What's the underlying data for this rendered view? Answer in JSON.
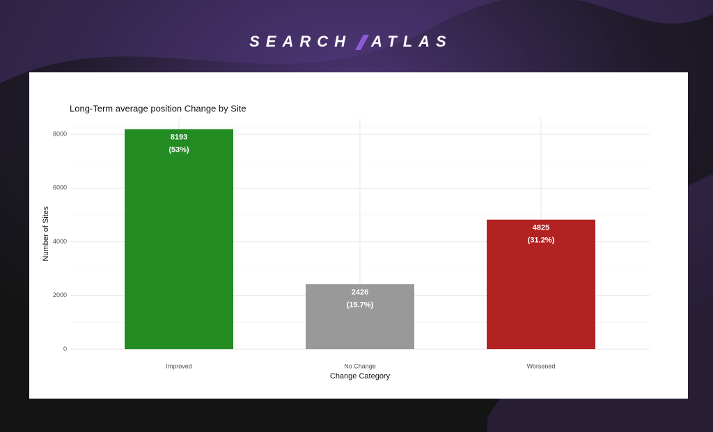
{
  "brand": {
    "left": "SEARCH",
    "right": "ATLAS"
  },
  "chart_data": {
    "type": "bar",
    "title": "Long-Term average position Change by Site",
    "x_label": "Change Category",
    "y_label": "Number of Sites",
    "categories": [
      "Improved",
      "No Change",
      "Worsened"
    ],
    "values": [
      8193,
      2426,
      4825
    ],
    "share_labels": [
      "(53%)",
      "(15.7%)",
      "(31.2%)"
    ],
    "colors": [
      "#228b22",
      "#999999",
      "#b22222"
    ],
    "ylim": [
      0,
      8600
    ],
    "yticks": [
      0,
      2000,
      4000,
      6000,
      8000
    ],
    "grid": true
  }
}
